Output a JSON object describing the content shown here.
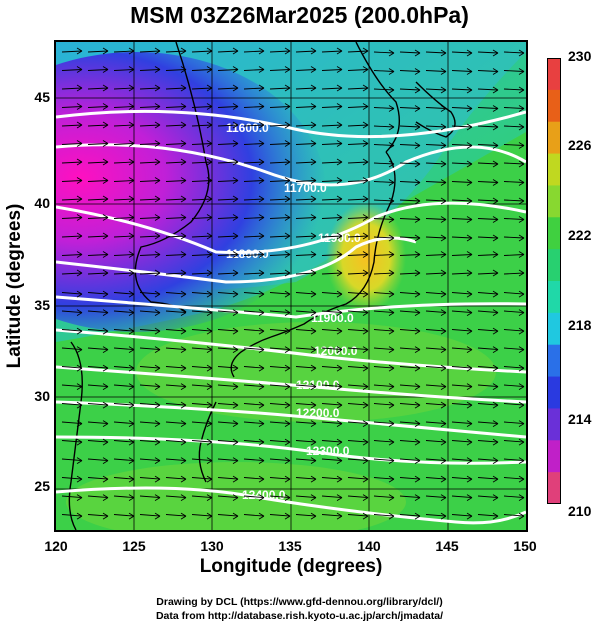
{
  "title": "MSM 03Z26Mar2025 (200.0hPa)",
  "axes": {
    "xlabel": "Longitude (degrees)",
    "ylabel": "Latitude  (degrees)",
    "xticks": [
      "120",
      "125",
      "130",
      "135",
      "140",
      "145",
      "150"
    ],
    "yticks": [
      "25",
      "30",
      "35",
      "40",
      "45"
    ]
  },
  "colorbar": {
    "min": "210",
    "max": "230",
    "labels": [
      "230",
      "226",
      "222",
      "218",
      "214",
      "210"
    ],
    "colors": [
      "#e0407a",
      "#c020c8",
      "#6a30d8",
      "#2a3ae0",
      "#2a70e8",
      "#20c8e0",
      "#20d8a8",
      "#28d070",
      "#40d040",
      "#88d830",
      "#c0d820",
      "#e8a018",
      "#e86018",
      "#e84040"
    ]
  },
  "contours": [
    {
      "label": "11600.0"
    },
    {
      "label": "11700.0"
    },
    {
      "label": "11800.0"
    },
    {
      "label": "11900.0"
    },
    {
      "label": "11900.0"
    },
    {
      "label": "12000.0"
    },
    {
      "label": "12100.0"
    },
    {
      "label": "12200.0"
    },
    {
      "label": "12300.0"
    },
    {
      "label": "12400.0"
    }
  ],
  "credits": {
    "line1": "Drawing by DCL (https://www.gfd-dennou.org/library/dcl/)",
    "line2": "Data from http://database.rish.kyoto-u.ac.jp/arch/jmadata/"
  }
}
